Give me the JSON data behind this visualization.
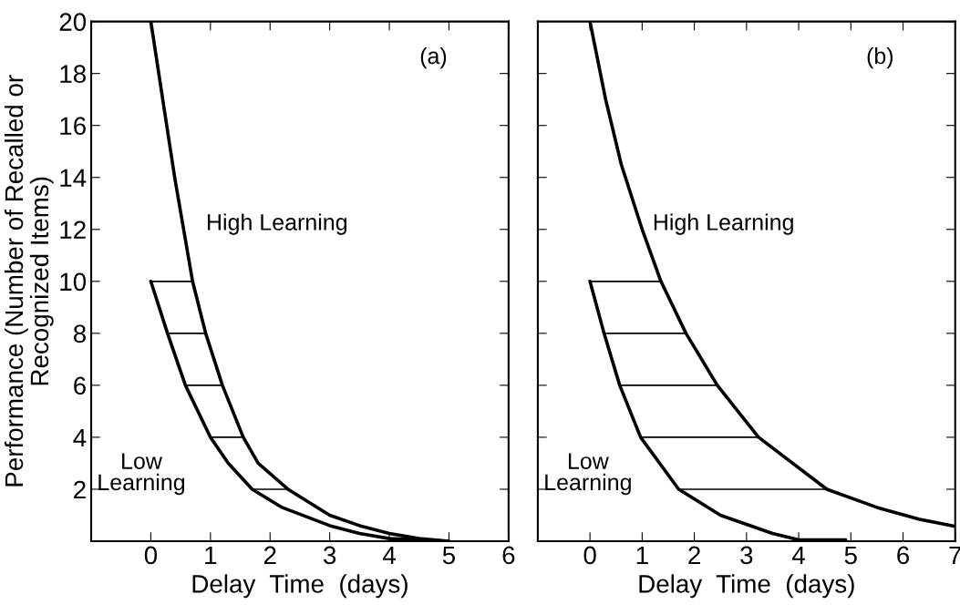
{
  "chart_data": [
    {
      "type": "line",
      "xlabel": "Delay  Time  (days)",
      "ylabel": "Performance (Number of Recalled or\nRecognized Items)",
      "xlim": [
        -1,
        6
      ],
      "xticks": [
        0,
        1,
        2,
        3,
        4,
        5,
        6
      ],
      "ylim": [
        0,
        20
      ],
      "yticks": [
        2,
        4,
        6,
        8,
        10,
        12,
        14,
        16,
        18,
        20
      ],
      "grid": false,
      "legend": false,
      "marker": "none",
      "line_style": "solid",
      "annotations": [
        "(a)",
        "High Learning",
        "Low\nLearning"
      ],
      "series": [
        {
          "color": "#000000",
          "x": [
            0,
            0.2,
            0.4,
            0.55,
            0.7,
            0.92,
            1.2,
            1.55,
            1.8,
            2.3,
            3,
            3.5,
            4,
            4.5,
            5
          ],
          "values": [
            20,
            17,
            14,
            12,
            10,
            8,
            6,
            4,
            3,
            2,
            1,
            0.6,
            0.3,
            0.1,
            0
          ]
        },
        {
          "color": "#000000",
          "x": [
            0,
            0.28,
            0.58,
            1.0,
            1.3,
            1.7,
            2.2,
            3,
            3.5,
            4,
            5
          ],
          "values": [
            10,
            8,
            6,
            4,
            3,
            2,
            1.3,
            0.6,
            0.3,
            0.1,
            0
          ]
        },
        {
          "color": "#000000",
          "x": [
            0,
            0.7
          ],
          "values": [
            10,
            10
          ]
        },
        {
          "color": "#000000",
          "x": [
            0.28,
            0.92
          ],
          "values": [
            8,
            8
          ]
        },
        {
          "color": "#000000",
          "x": [
            0.58,
            1.2
          ],
          "values": [
            6,
            6
          ]
        },
        {
          "color": "#000000",
          "x": [
            1.0,
            1.55
          ],
          "values": [
            4,
            4
          ]
        },
        {
          "color": "#000000",
          "x": [
            1.7,
            2.3
          ],
          "values": [
            2,
            2
          ]
        }
      ]
    },
    {
      "type": "line",
      "xlabel": "Delay  Time  (days)",
      "xlim": [
        -1,
        7
      ],
      "xticks": [
        0,
        1,
        2,
        3,
        4,
        5,
        6,
        7
      ],
      "ylim": [
        0,
        20
      ],
      "yticks": [
        2,
        4,
        6,
        8,
        10,
        12,
        14,
        16,
        18,
        20
      ],
      "tick_labels": "x",
      "grid": false,
      "legend": false,
      "marker": "none",
      "line_style": "solid",
      "annotations": [
        "(b)",
        "High Learning",
        "Low\nLearning"
      ],
      "series": [
        {
          "color": "#000000",
          "x": [
            0,
            0.3,
            0.6,
            1.0,
            1.36,
            1.84,
            2.44,
            3.23,
            4.54,
            5.5,
            6.3,
            7
          ],
          "values": [
            20,
            17,
            14.5,
            12,
            10,
            8,
            6,
            4,
            2,
            1.3,
            0.85,
            0.57
          ]
        },
        {
          "color": "#000000",
          "x": [
            0,
            0.27,
            0.57,
            0.97,
            1.7,
            2.5,
            3.5,
            4,
            4.9
          ],
          "values": [
            10,
            8,
            6,
            4,
            2,
            1,
            0.3,
            0.05,
            0.05
          ]
        },
        {
          "color": "#000000",
          "x": [
            0,
            1.36
          ],
          "values": [
            10,
            10
          ]
        },
        {
          "color": "#000000",
          "x": [
            0.27,
            1.84
          ],
          "values": [
            8,
            8
          ]
        },
        {
          "color": "#000000",
          "x": [
            0.57,
            2.44
          ],
          "values": [
            6,
            6
          ]
        },
        {
          "color": "#000000",
          "x": [
            0.97,
            3.23
          ],
          "values": [
            4,
            4
          ]
        },
        {
          "color": "#000000",
          "x": [
            1.7,
            4.54
          ],
          "values": [
            2,
            2
          ]
        }
      ]
    }
  ]
}
